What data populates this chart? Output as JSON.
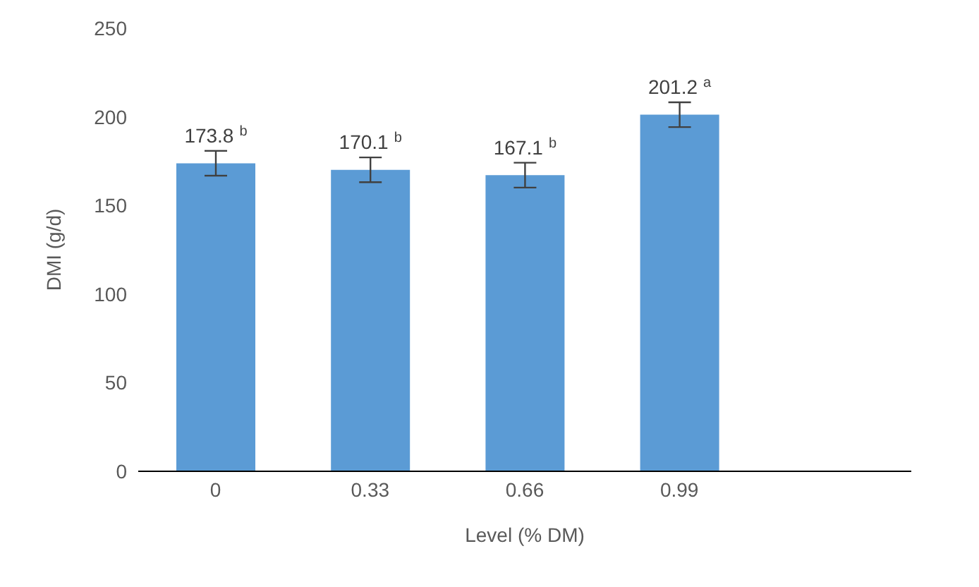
{
  "chart_data": {
    "type": "bar",
    "xlabel": "Level (% DM)",
    "ylabel": "DMI (g/d)",
    "categories": [
      "0",
      "0.33",
      "0.66",
      "0.99",
      null
    ],
    "values": [
      173.8,
      170.1,
      167.1,
      201.2,
      null
    ],
    "errors": [
      7,
      7,
      7,
      7,
      null
    ],
    "value_labels": [
      "173.8$^{b}$",
      "170.1$^{b}$",
      "167.1$^{b}$",
      "201.2$^{a}$",
      null
    ],
    "color": "#5b9bd5",
    "ylim": [
      0,
      250
    ],
    "yticks": [
      0,
      50,
      100,
      150,
      200,
      250
    ],
    "grid": false,
    "legend": false
  }
}
